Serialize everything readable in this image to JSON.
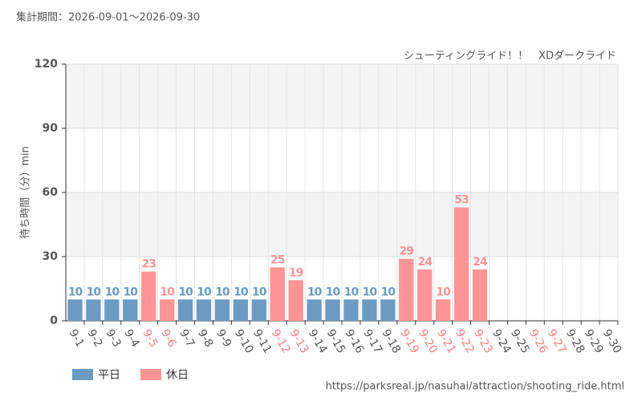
{
  "chart_data": {
    "type": "bar",
    "title": "集計期間：2026-09-01～2026-09-30",
    "subtitle": "シューティングライド！！　XDダークライド",
    "y_label": "待ち時間（分）min",
    "source": "https://parksreal.jp/nasuhai/attraction/shooting_ride.html",
    "categories": [
      "9-1",
      "9-2",
      "9-3",
      "9-4",
      "9-5",
      "9-6",
      "9-7",
      "9-8",
      "9-9",
      "9-10",
      "9-11",
      "9-12",
      "9-13",
      "9-14",
      "9-15",
      "9-16",
      "9-17",
      "9-18",
      "9-19",
      "9-20",
      "9-21",
      "9-22",
      "9-23",
      "9-24",
      "9-25",
      "9-26",
      "9-27",
      "9-28",
      "9-29",
      "9-30"
    ],
    "category_colors": [
      "#555",
      "#555",
      "#555",
      "#555",
      "#f08080",
      "#f08080",
      "#555",
      "#555",
      "#555",
      "#555",
      "#555",
      "#f08080",
      "#f08080",
      "#555",
      "#555",
      "#555",
      "#555",
      "#555",
      "#f08080",
      "#f08080",
      "#f08080",
      "#f08080",
      "#f08080",
      "#555",
      "#555",
      "#f08080",
      "#f08080",
      "#555",
      "#555",
      "#555"
    ],
    "series": [
      {
        "name": "平日",
        "color": "#6b9bc3",
        "values": [
          10,
          10,
          10,
          10,
          null,
          null,
          10,
          10,
          10,
          10,
          10,
          null,
          null,
          10,
          10,
          10,
          10,
          10,
          null,
          null,
          null,
          null,
          null,
          null,
          null,
          null,
          null,
          null,
          null,
          null
        ]
      },
      {
        "name": "休日",
        "color": "#ff9494",
        "values": [
          null,
          null,
          null,
          null,
          23,
          10,
          null,
          null,
          null,
          null,
          null,
          25,
          19,
          null,
          null,
          null,
          null,
          null,
          29,
          24,
          10,
          53,
          24,
          null,
          null,
          null,
          null,
          null,
          null,
          null
        ]
      }
    ],
    "ylim": [
      0,
      120
    ],
    "yticks": [
      0,
      30,
      60,
      90,
      120
    ],
    "grid": true
  }
}
